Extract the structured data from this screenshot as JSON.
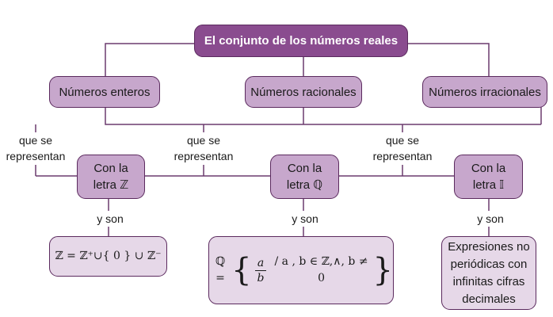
{
  "title": "El conjunto de los números reales",
  "categories": {
    "enteros": "Números enteros",
    "racionales": "Números racionales",
    "irracionales": "Números irracionales"
  },
  "connector_label": [
    "que se",
    "representan"
  ],
  "letters": {
    "z": [
      "Con la",
      "letra ℤ"
    ],
    "q": [
      "Con la",
      "letra ℚ"
    ],
    "i": [
      "Con la",
      "letra 𝕀"
    ]
  },
  "y_son": "y son",
  "definitions": {
    "z": "ℤ = ℤ⁺∪{ 0 } ∪ ℤ⁻",
    "q": {
      "lhs": "ℚ =",
      "open": "{",
      "num": "a",
      "den": "b",
      "rest": "/  a , b ∈ ℤ,∧, b ≠ 0",
      "close": "}"
    },
    "i": [
      "Expresiones no",
      "periódicas con",
      "infinitas cifras",
      "decimales"
    ]
  },
  "colors": {
    "title_fill": "#8a4c8f",
    "box_fill": "#c7a7cc",
    "light_fill": "#e6d8e8",
    "border": "#5b2a5e"
  }
}
